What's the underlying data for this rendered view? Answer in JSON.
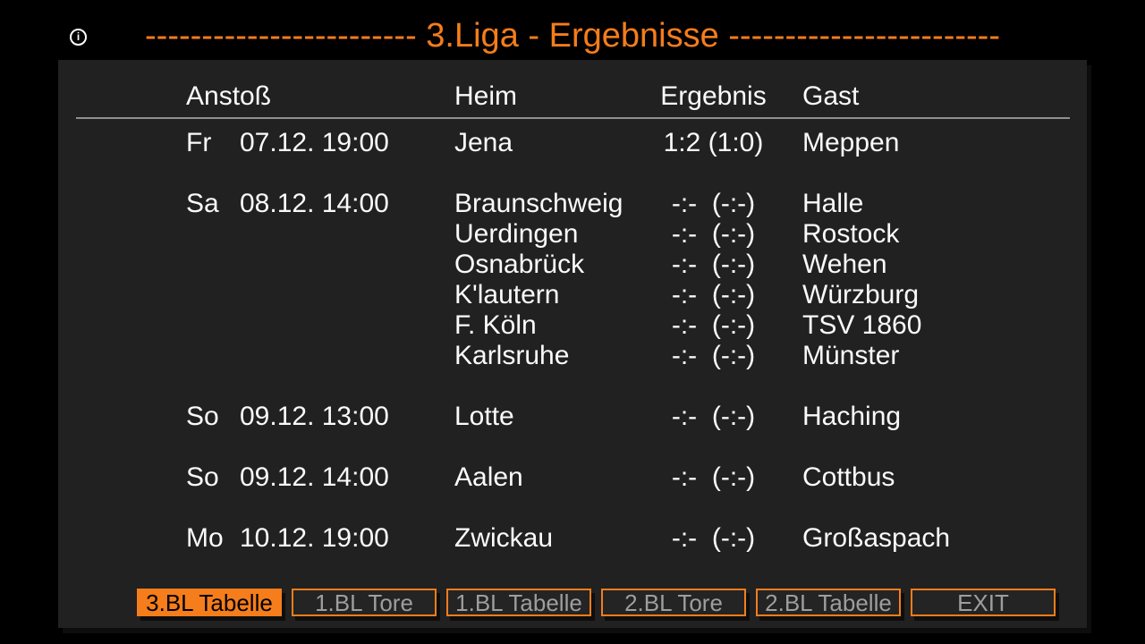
{
  "app": {
    "accent_color": "#f57d1b",
    "panel_color": "#212121",
    "background_color": "#000000",
    "text_color": "#fafafa",
    "muted_text_color": "#9e9e9e"
  },
  "header": {
    "title": "------------------------ 3.Liga - Ergebnisse ------------------------",
    "info_icon_glyph": "i"
  },
  "table": {
    "columns": {
      "kickoff": "Anstoß",
      "home": "Heim",
      "result": "Ergebnis",
      "guest": "Gast"
    },
    "groups": [
      {
        "day": "Fr",
        "date": "07.12.",
        "time": "19:00",
        "matches": [
          {
            "home": "Jena",
            "result": "1:2 (1:0)",
            "guest": "Meppen"
          }
        ]
      },
      {
        "day": "Sa",
        "date": "08.12.",
        "time": "14:00",
        "matches": [
          {
            "home": "Braunschweig",
            "result": "-:-  (-:-)",
            "guest": "Halle"
          },
          {
            "home": "Uerdingen",
            "result": "-:-  (-:-)",
            "guest": "Rostock"
          },
          {
            "home": "Osnabrück",
            "result": "-:-  (-:-)",
            "guest": "Wehen"
          },
          {
            "home": "K'lautern",
            "result": "-:-  (-:-)",
            "guest": "Würzburg"
          },
          {
            "home": "F. Köln",
            "result": "-:-  (-:-)",
            "guest": "TSV 1860"
          },
          {
            "home": "Karlsruhe",
            "result": "-:-  (-:-)",
            "guest": "Münster"
          }
        ]
      },
      {
        "day": "So",
        "date": "09.12.",
        "time": "13:00",
        "matches": [
          {
            "home": "Lotte",
            "result": "-:-  (-:-)",
            "guest": "Haching"
          }
        ]
      },
      {
        "day": "So",
        "date": "09.12.",
        "time": "14:00",
        "matches": [
          {
            "home": "Aalen",
            "result": "-:-  (-:-)",
            "guest": "Cottbus"
          }
        ]
      },
      {
        "day": "Mo",
        "date": "10.12.",
        "time": "19:00",
        "matches": [
          {
            "home": "Zwickau",
            "result": "-:-  (-:-)",
            "guest": "Großaspach"
          }
        ]
      }
    ]
  },
  "footer": {
    "buttons": [
      {
        "label": "3.BL Tabelle",
        "selected": true
      },
      {
        "label": "1.BL Tore",
        "selected": false
      },
      {
        "label": "1.BL Tabelle",
        "selected": false
      },
      {
        "label": "2.BL Tore",
        "selected": false
      },
      {
        "label": "2.BL Tabelle",
        "selected": false
      },
      {
        "label": "EXIT",
        "selected": false
      }
    ]
  }
}
